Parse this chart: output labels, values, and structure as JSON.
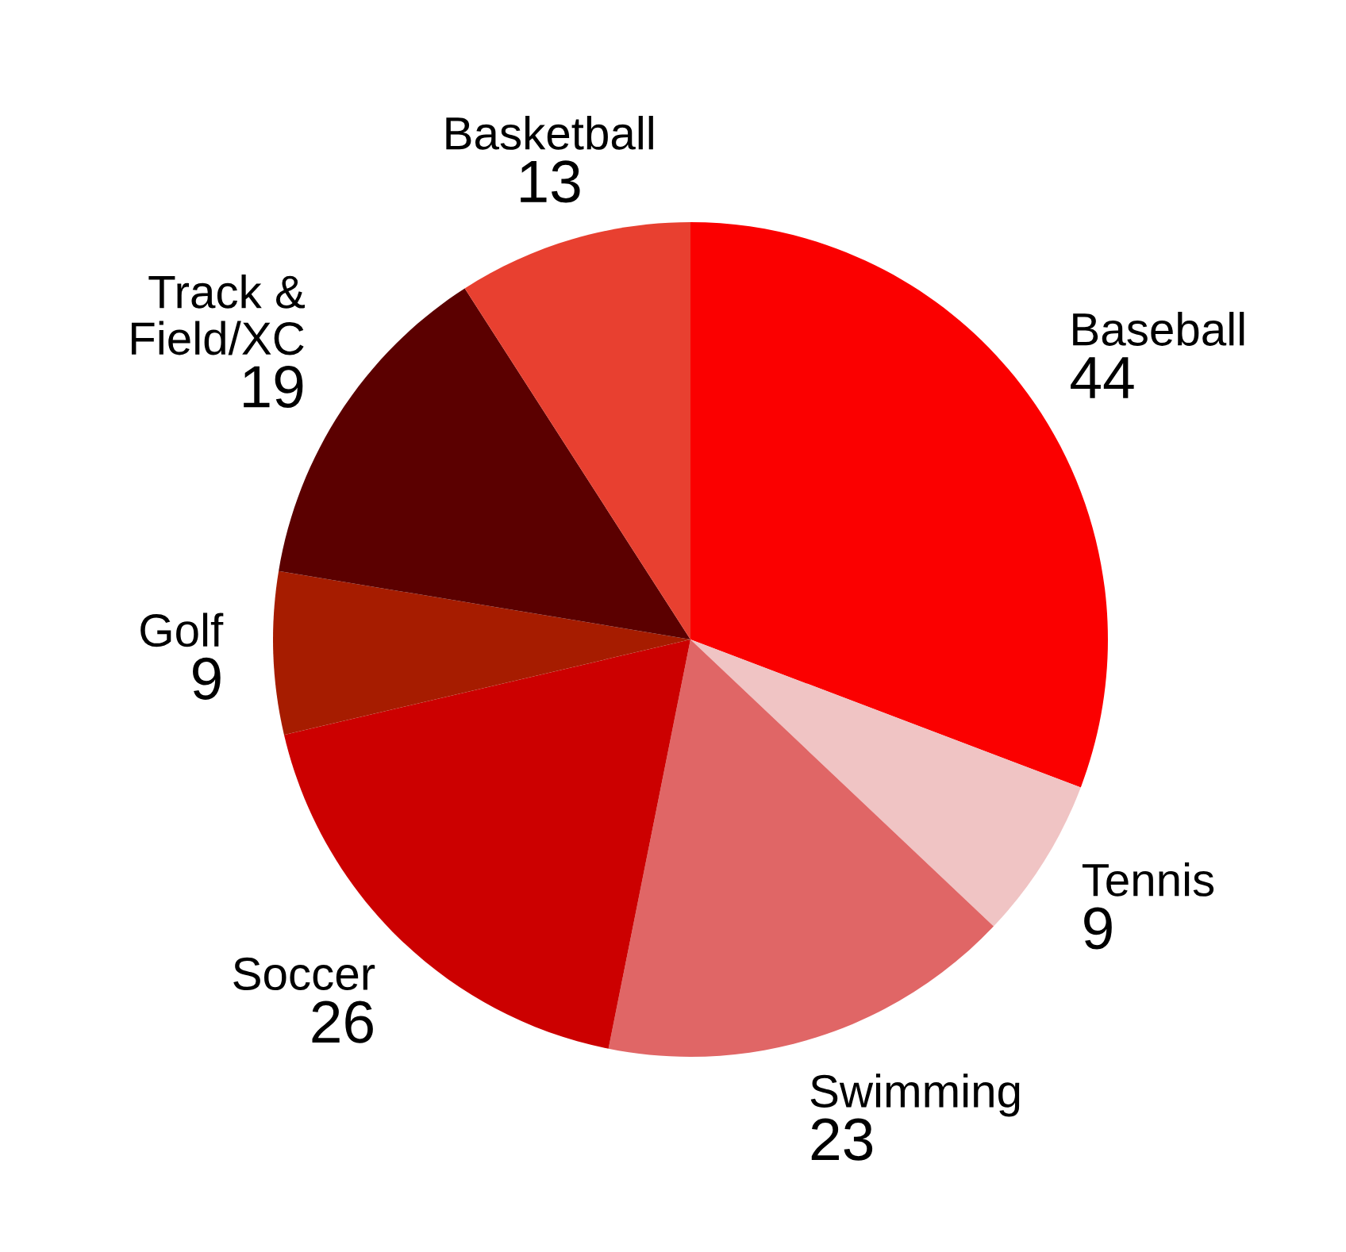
{
  "chart_data": {
    "type": "pie",
    "categories": [
      "Baseball",
      "Tennis",
      "Swimming",
      "Soccer",
      "Golf",
      "Track & Field/XC",
      "Basketball"
    ],
    "values": [
      44,
      9,
      23,
      26,
      9,
      19,
      13
    ],
    "colors": [
      "#fb0000",
      "#f0c4c4",
      "#e06666",
      "#cc0000",
      "#a61c00",
      "#5b0000",
      "#e84030"
    ],
    "data_labels": true
  }
}
